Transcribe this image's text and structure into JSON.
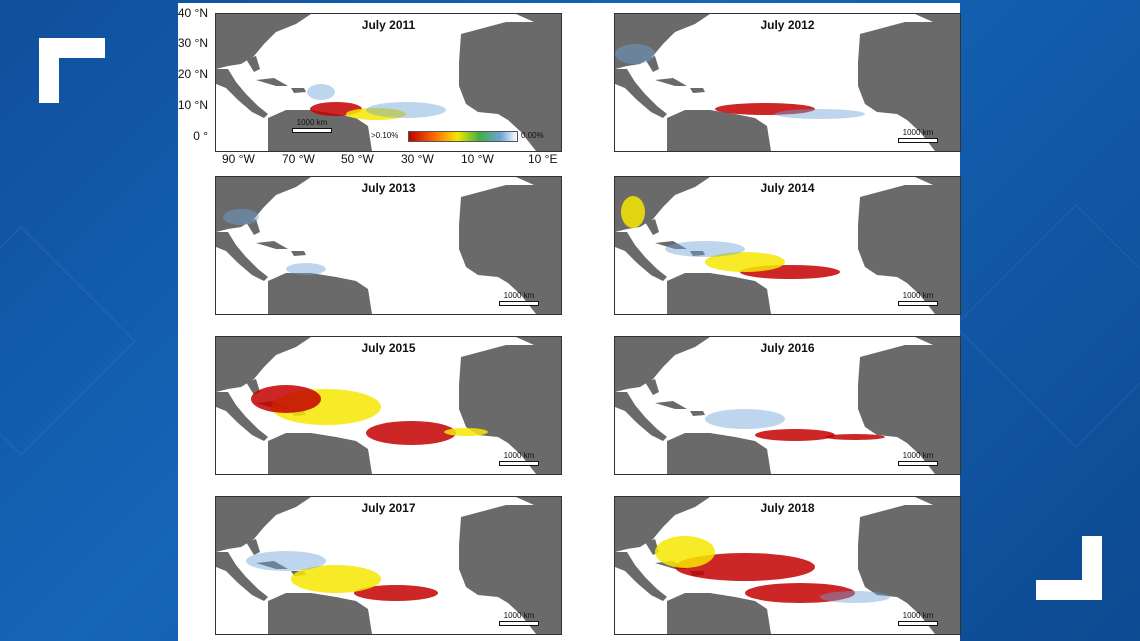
{
  "maps": [
    {
      "title": "July 2011"
    },
    {
      "title": "July 2012"
    },
    {
      "title": "July 2013"
    },
    {
      "title": "July 2014"
    },
    {
      "title": "July 2015"
    },
    {
      "title": "July 2016"
    },
    {
      "title": "July 2017"
    },
    {
      "title": "July 2018"
    }
  ],
  "scale_label": "1000 km",
  "latitudes": [
    "40 °N",
    "30 °N",
    "20 °N",
    "10 °N",
    "0 °"
  ],
  "longitudes": [
    "90 °W",
    "70 °W",
    "50 °W",
    "30 °W",
    "10 °W",
    "10 °E"
  ],
  "legend": {
    "low_label": ">0.10%",
    "high_label": "0.00%"
  },
  "colors": {
    "land": "#6a6a6a",
    "high": "#c30000",
    "mid": "#f4e700",
    "low": "#6fa3d8",
    "background": "#1565b8"
  }
}
